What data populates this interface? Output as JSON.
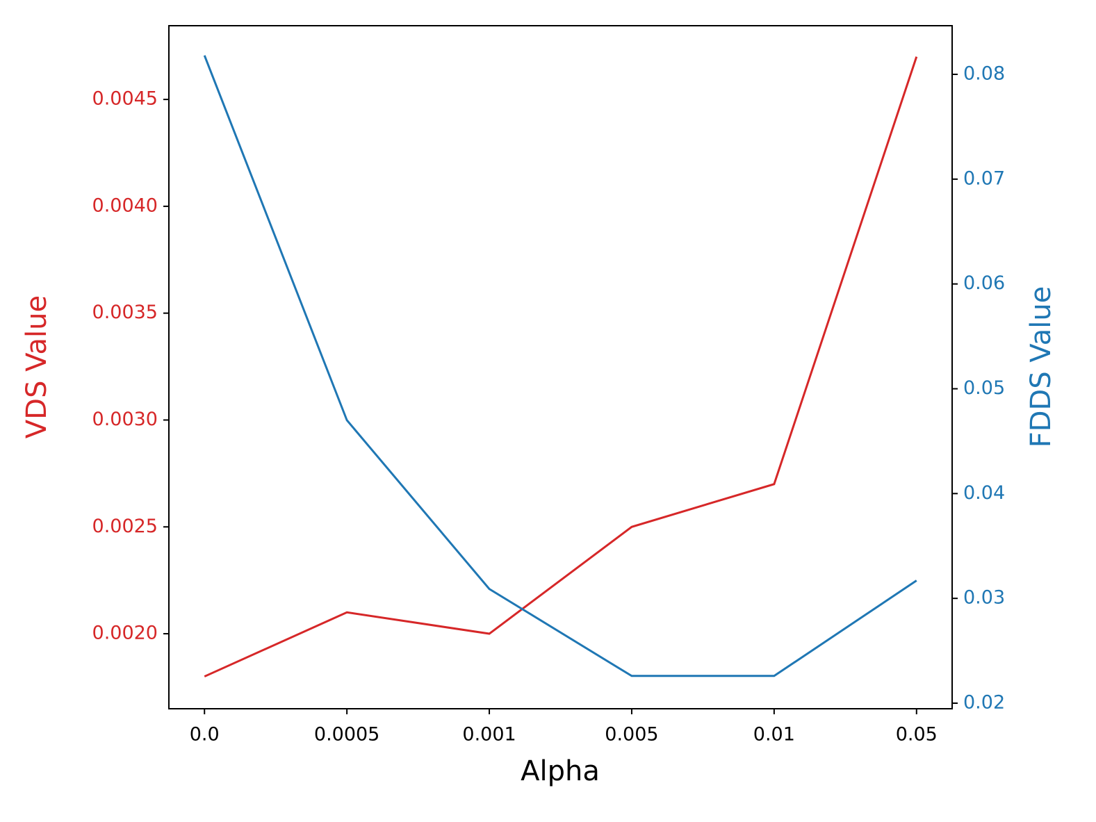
{
  "chart_data": {
    "type": "line",
    "x_label": "Alpha",
    "categories": [
      "0.0",
      "0.0005",
      "0.001",
      "0.005",
      "0.01",
      "0.05"
    ],
    "y_label": "VDS Value",
    "y_label_color": "#d62728",
    "y2_label": "FDDS Value",
    "y2_label_color": "#1f77b4",
    "ylim": [
      0.001649,
      0.004845
    ],
    "yticks": [
      {
        "value": 0.002,
        "label": "0.0020"
      },
      0.0025,
      {
        "value": 0.003,
        "label": "0.0030"
      },
      0.0035,
      {
        "value": 0.004,
        "label": "0.0040"
      },
      0.0045
    ],
    "y2lim": [
      0.01947,
      0.08464
    ],
    "y2ticks": [
      0.02,
      0.03,
      0.04,
      0.05,
      0.06,
      0.07,
      0.08
    ],
    "series": [
      {
        "name": "VDS Value",
        "color": "#d62728",
        "values": [
          0.0018,
          0.0021,
          0.002,
          0.0025,
          0.0027,
          0.0047
        ]
      },
      {
        "name": "FDDS Value",
        "color": "#1f77b4",
        "axis": "y2",
        "values": [
          0.0818,
          0.047,
          0.0309,
          0.0226,
          0.0226,
          0.0317
        ]
      }
    ],
    "grid": false
  }
}
